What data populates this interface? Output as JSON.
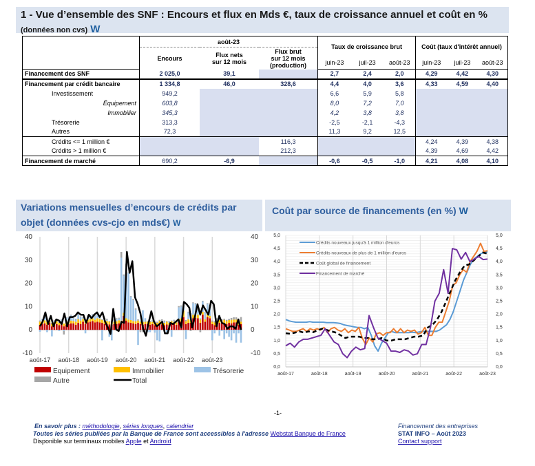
{
  "header": {
    "title": "1 -  Vue d’ensemble des SNF : Encours et flux en Mds €, taux de croissance annuel et coût en %",
    "subtitle": "(données non cvs)",
    "logo": "W"
  },
  "table": {
    "period_header": "août-23",
    "col_encours": "Encours",
    "col_flux_nets": "Flux nets",
    "col_flux_nets_2": "sur 12 mois",
    "col_flux_brut": "Flux brut",
    "col_flux_brut_2": "sur 12 mois",
    "col_flux_brut_3": "(production)",
    "group_taux": "Taux de croissance brut",
    "group_cout": "Coût (taux d'intérêt annuel)",
    "months": [
      "juin-23",
      "juil-23",
      "août-23"
    ],
    "rows": [
      {
        "label": "Financement des SNF",
        "encours": "2 025,0",
        "flux_nets": "39,1",
        "flux_brut": "",
        "taux": [
          "2,7",
          "2,4",
          "2,0"
        ],
        "cout": [
          "4,29",
          "4,42",
          "4,30"
        ]
      },
      {
        "label": "Financement par crédit bancaire",
        "encours": "1 334,8",
        "flux_nets": "46,0",
        "flux_brut": "328,6",
        "taux": [
          "4,4",
          "4,0",
          "3,6"
        ],
        "cout": [
          "4,33",
          "4,59",
          "4,40"
        ]
      },
      {
        "label": "Investissement",
        "encours": "949,2",
        "taux": [
          "6,6",
          "5,9",
          "5,8"
        ]
      },
      {
        "label": "Équipement",
        "encours": "603,8",
        "taux": [
          "8,0",
          "7,2",
          "7,0"
        ]
      },
      {
        "label": "Immobilier",
        "encours": "345,3",
        "taux": [
          "4,2",
          "3,8",
          "3,8"
        ]
      },
      {
        "label": "Trésorerie",
        "encours": "313,3",
        "taux": [
          "-2,5",
          "-2,1",
          "-4,3"
        ]
      },
      {
        "label": "Autres",
        "encours": "72,3",
        "taux": [
          "11,3",
          "9,2",
          "12,5"
        ]
      },
      {
        "label": "Crédits <= 1 million €",
        "flux_brut": "116,3",
        "cout": [
          "4,24",
          "4,39",
          "4,38"
        ]
      },
      {
        "label": "Crédits > 1 million €",
        "flux_brut": "212,3",
        "cout": [
          "4,39",
          "4,69",
          "4,42"
        ]
      },
      {
        "label": "Financement de marché",
        "encours": "690,2",
        "flux_nets": "-6,9",
        "flux_brut": "",
        "taux": [
          "-0,6",
          "-0,5",
          "-1,0"
        ],
        "cout": [
          "4,21",
          "4,08",
          "4,10"
        ]
      }
    ]
  },
  "section_left": {
    "title_line1": "Variations mensuelles d’encours de crédits par",
    "title_line2": "objet (données cvs-cjo en mds€)",
    "logo": "W"
  },
  "section_right": {
    "title": "Coût par source de financements (en %)",
    "logo": "W"
  },
  "chart_data": [
    {
      "type": "bar",
      "stacked": true,
      "title": "Variations mensuelles d’encours de crédits par objet (données cvs-cjo en mds€)",
      "xlabel": "",
      "ylabel": "",
      "ylim": [
        -10,
        40
      ],
      "yticks": [
        "40",
        "30",
        "20",
        "10",
        "0",
        "-10"
      ],
      "xticks": [
        "août-17",
        "août-18",
        "août-19",
        "août-20",
        "août-21",
        "août-22",
        "août-23"
      ],
      "legend_position": "bottom",
      "colors": {
        "Equipement": "#c00000",
        "Immobilier": "#ffc000",
        "Trésorerie": "#9dc3e6",
        "Autre": "#a6a6a6",
        "Total": "#000000"
      },
      "series": [
        {
          "name": "Equipement",
          "values": [
            2,
            2.5,
            2.8,
            2.2,
            3,
            1.5,
            2.2,
            2.5,
            2,
            2.3,
            1.5,
            2.2,
            2.5,
            2.8,
            2.8,
            2.2,
            3,
            2.5,
            3.5,
            2.5,
            3.2,
            3.5,
            3.8,
            3.2,
            3.5,
            3.2,
            3,
            2.5,
            2.5,
            2.3,
            2.2,
            2.5,
            2.5,
            2.8,
            2.8,
            6,
            4,
            3.2,
            3,
            2.8,
            2.5,
            3,
            2.5,
            2.2,
            2.5,
            2.5,
            2.2,
            2.5,
            2,
            2,
            2.5,
            2.3,
            2,
            2.3,
            2,
            2.5,
            2.5,
            2.2,
            3.5,
            3.5,
            5.5,
            2.5,
            3,
            3,
            5,
            5.2,
            5,
            3,
            6.5,
            3.5,
            5.5,
            5,
            2.5,
            2,
            2.5,
            3,
            3,
            2.8,
            2.5,
            3,
            2.8,
            3.2,
            3.2,
            2.2,
            2.5
          ]
        },
        {
          "name": "Immobilier",
          "values": [
            1.5,
            1.2,
            1.3,
            1.2,
            1.2,
            1.2,
            1.0,
            1.2,
            1.0,
            1.1,
            1.2,
            1.5,
            1.3,
            1.2,
            1.0,
            1.3,
            1.5,
            1.5,
            1.2,
            1.5,
            1.2,
            1.3,
            1.2,
            1.2,
            1.5,
            1.5,
            1.2,
            1.2,
            1.3,
            1.2,
            1.2,
            1.0,
            1.2,
            1.3,
            1.2,
            1.3,
            1.0,
            1.2,
            1.2,
            1.0,
            1.2,
            1.0,
            1.0,
            1.2,
            1.0,
            1.0,
            1.2,
            1.0,
            1.2,
            1.0,
            1.3,
            1.2,
            1.0,
            1.2,
            1.0,
            1.2,
            1.0,
            1.0,
            1.2,
            1.5,
            2.8,
            1.2,
            1.5,
            1.2,
            1.5,
            1.0,
            1.5,
            1.5,
            1.2,
            1.0,
            1.2,
            1.0,
            1.0,
            1.2,
            1.2,
            1.2,
            1.0,
            1.5,
            1.3,
            1.2,
            1.5,
            1.2,
            1.2,
            1.0,
            1.0
          ]
        },
        {
          "name": "Trésorerie",
          "values": [
            -0.8,
            0.8,
            1.5,
            -1,
            0.5,
            -2.8,
            0.8,
            0.5,
            -0.5,
            1.0,
            -0.5,
            1.5,
            1.5,
            2.2,
            1.2,
            1.0,
            2.0,
            1.5,
            0.5,
            -1.5,
            1.5,
            1.2,
            1.5,
            1.5,
            1.5,
            0.5,
            -4.5,
            0.8,
            0.5,
            -3,
            -4.5,
            0.5,
            1.0,
            0.8,
            27,
            16,
            22,
            20,
            10,
            9,
            5,
            -6.5,
            0.5,
            5,
            1.5,
            -1,
            -1,
            0.5,
            -1.2,
            -4.5,
            -5,
            0.5,
            0.5,
            -1,
            0.5,
            -3,
            0.5,
            0.5,
            5,
            5,
            2.5,
            -4,
            3,
            3,
            5,
            5,
            2,
            0.5,
            4.5,
            3,
            4.5,
            4.5,
            -4.5,
            -1.5,
            0.5,
            -2.5,
            -0.5,
            -4,
            -1.5,
            -3,
            -4.5,
            -1.5,
            -5.5,
            -1.5,
            -5.5
          ]
        },
        {
          "name": "Autre",
          "values": [
            0.5,
            0.3,
            0.3,
            0.3,
            0.3,
            0.3,
            0.3,
            0.2,
            0.3,
            0.3,
            -1.5,
            0.3,
            0.3,
            0.3,
            0.3,
            0.3,
            0.3,
            0.3,
            0.3,
            0.3,
            0.3,
            0.3,
            0.3,
            0.3,
            0.3,
            0.3,
            0.3,
            0.5,
            0.5,
            0.3,
            0.3,
            0.5,
            0.3,
            0.3,
            2.5,
            0.5,
            1.5,
            0.3,
            0.3,
            0.5,
            0.5,
            0.5,
            -1,
            -1,
            -0.8,
            0.3,
            0.5,
            0.3,
            0.5,
            0.5,
            0.5,
            0.5,
            0.5,
            0.3,
            0.3,
            0.3,
            0.3,
            0.3,
            0.5,
            0.5,
            0.3,
            0.5,
            0.3,
            -0.5,
            0.3,
            0.3,
            0.3,
            -1,
            0.3,
            0.3,
            0.3,
            0.3,
            0.5,
            0.5,
            0.8,
            0.5,
            0.5,
            0.5,
            0.5,
            0.5,
            0.8,
            1.0,
            1.0,
            1.5,
            2.0
          ]
        },
        {
          "name": "Total",
          "values": [
            1.5,
            3.5,
            7.5,
            2.5,
            6,
            1.5,
            4.5,
            4,
            2.5,
            7,
            1.5,
            5.5,
            5.5,
            6,
            7.5,
            6.5,
            6.5,
            3,
            6.5,
            5,
            6.5,
            7.5,
            5.5,
            7.5,
            3.5,
            1,
            -1.8,
            9,
            0.2,
            -0.5,
            3.5,
            3,
            33.5,
            24.5,
            29.5,
            14,
            11,
            7,
            0.5,
            -2.5,
            3,
            8,
            3.5,
            1.5,
            2.5,
            3.5,
            -1.5,
            -1.5,
            3,
            2.5,
            3.5,
            4.5,
            1,
            12,
            11,
            9.5,
            1,
            5.5,
            11,
            6.5,
            10.5,
            8.5,
            6.5,
            12.5,
            11,
            1.5,
            6,
            3,
            2.5,
            0.5,
            1.5,
            1.5,
            0.5,
            4.5,
            0
          ]
        }
      ]
    },
    {
      "type": "line",
      "title": "Coût par source de financements (en %)",
      "xlabel": "",
      "ylabel": "",
      "ylim": [
        0,
        5
      ],
      "yticks": [
        "5,0",
        "4,5",
        "4,0",
        "3,5",
        "3,0",
        "2,5",
        "2,0",
        "1,5",
        "1,0",
        "0,5",
        "0,0"
      ],
      "xticks": [
        "août-17",
        "août-18",
        "août-19",
        "août-20",
        "août-21",
        "août-22",
        "août-23"
      ],
      "legend_position": "top-left",
      "series": [
        {
          "name": "Crédits nouveaux jusqu'à 1 million d'euros",
          "color": "#5b9bd5",
          "dashed": false,
          "values": [
            1.8,
            1.75,
            1.72,
            1.7,
            1.7,
            1.7,
            1.7,
            1.72,
            1.7,
            1.7,
            1.7,
            1.7,
            1.68,
            1.68,
            1.68,
            1.67,
            1.65,
            1.6,
            1.57,
            1.55,
            1.52,
            1.5,
            1.5,
            1.45,
            1.5,
            1.2,
            0.8,
            0.6,
            0.9,
            1.1,
            1.3,
            1.35,
            1.3,
            1.3,
            1.3,
            1.3,
            1.3,
            1.32,
            1.3,
            1.33,
            1.35,
            1.35,
            1.35,
            1.35,
            1.35,
            1.4,
            1.5,
            1.6,
            1.8,
            2.1,
            2.5,
            2.9,
            3.3,
            3.6,
            3.9,
            4.1,
            4.2,
            4.3,
            4.35,
            4.38
          ]
        },
        {
          "name": "Crédits nouveaux de plus de 1 million d'euros",
          "color": "#ed7d31",
          "dashed": false,
          "values": [
            1.45,
            1.4,
            1.35,
            1.35,
            1.4,
            1.45,
            1.35,
            1.45,
            1.4,
            1.45,
            1.4,
            1.5,
            1.3,
            1.45,
            1.5,
            1.4,
            1.35,
            1.45,
            1.3,
            1.4,
            1.35,
            1.5,
            1.1,
            0.85,
            1.1,
            0.95,
            1.25,
            1.3,
            1.2,
            1.3,
            1.3,
            1.45,
            1.3,
            1.45,
            1.3,
            1.4,
            1.35,
            1.4,
            1.25,
            1.3,
            1.5,
            1.2,
            1.2,
            1.5,
            1.7,
            1.7,
            2.1,
            2.5,
            3.1,
            3.2,
            3.5,
            3.7,
            3.6,
            4.0,
            4.2,
            4.4,
            4.7,
            4.39,
            4.42
          ]
        },
        {
          "name": "Coût global de financement",
          "color": "#000000",
          "dashed": true,
          "values": [
            1.28,
            1.26,
            1.3,
            1.35,
            1.3,
            1.35,
            1.32,
            1.4,
            1.45,
            1.4,
            1.35,
            1.3,
            1.2,
            1.1,
            1.15,
            1.15,
            1.15,
            1.1,
            1.1,
            1.05,
            1.05,
            1.1,
            1.0,
            1.0,
            1.05,
            1.05,
            1.05,
            1.1,
            1.15,
            1.15,
            1.2,
            1.5,
            1.6,
            1.8,
            2.1,
            2.5,
            2.9,
            3.3,
            3.6,
            3.85,
            3.9,
            4.05,
            4.2,
            4.35,
            4.3
          ]
        },
        {
          "name": "Financement de marché",
          "color": "#7030a0",
          "dashed": false,
          "values": [
            0.8,
            0.9,
            0.75,
            0.95,
            1.05,
            1.05,
            1.1,
            1.15,
            1.2,
            1.45,
            1.2,
            0.95,
            0.85,
            0.5,
            0.35,
            0.6,
            0.75,
            0.65,
            0.7,
            1.95,
            1.5,
            1.1,
            1.0,
            0.9,
            0.6,
            0.6,
            0.55,
            0.65,
            0.6,
            0.45,
            0.5,
            0.85,
            0.85,
            1.5,
            2.5,
            2.8,
            3.7,
            2.8,
            4.5,
            4.45,
            4.1,
            4.35,
            4.0,
            4.1,
            4.2,
            4.08,
            4.1
          ]
        }
      ]
    }
  ],
  "legend_left": {
    "items": [
      "Equipement",
      "Immobilier",
      "Trésorerie",
      "Autre",
      "Total"
    ]
  },
  "page_number": "-1-",
  "footer": {
    "en_savoir": "En savoir plus :",
    "link_methodologie": "méthodologie",
    "link_series": "séries longues",
    "link_calendrier": "calendrier",
    "toutes_series": "Toutes les séries publiées par la Banque de France sont accessibles à l'adresse",
    "link_webstat": "Webstat Banque de France",
    "disponible": "Disponible sur terminaux mobiles",
    "link_apple": "Apple",
    "et": "et",
    "link_android": "Android",
    "right_line1": "Financement des entreprises",
    "right_line2": "STAT INFO – Août 2023",
    "link_contact": "Contact support"
  }
}
